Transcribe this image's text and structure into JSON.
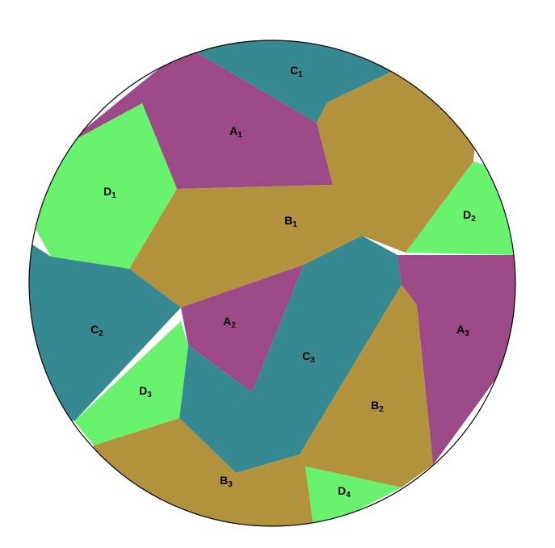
{
  "colors": {
    "A": "#9c4a87",
    "B": "#b2923d",
    "C": "#368891",
    "D": "#69f26e",
    "outline": "#000000",
    "background": "#ffffff"
  },
  "regions": [
    {
      "id": "C1",
      "letter": "C",
      "sub": "1"
    },
    {
      "id": "A1",
      "letter": "A",
      "sub": "1"
    },
    {
      "id": "D1",
      "letter": "D",
      "sub": "1"
    },
    {
      "id": "B1",
      "letter": "B",
      "sub": "1"
    },
    {
      "id": "D2",
      "letter": "D",
      "sub": "2"
    },
    {
      "id": "C2",
      "letter": "C",
      "sub": "2"
    },
    {
      "id": "A2",
      "letter": "A",
      "sub": "2"
    },
    {
      "id": "C3",
      "letter": "C",
      "sub": "3"
    },
    {
      "id": "A3",
      "letter": "A",
      "sub": "3"
    },
    {
      "id": "D3",
      "letter": "D",
      "sub": "3"
    },
    {
      "id": "B2",
      "letter": "B",
      "sub": "2"
    },
    {
      "id": "B3",
      "letter": "B",
      "sub": "3"
    },
    {
      "id": "D4",
      "letter": "D",
      "sub": "4"
    }
  ]
}
